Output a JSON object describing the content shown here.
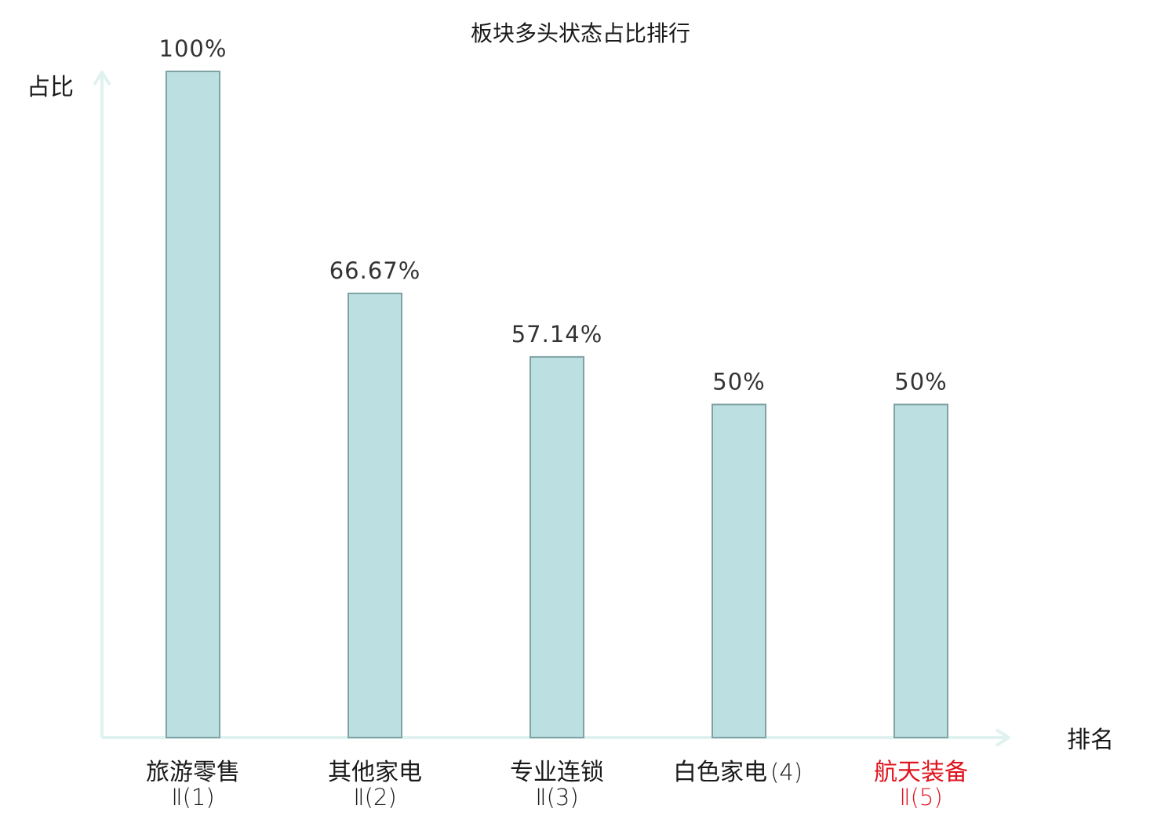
{
  "chart_data": {
    "type": "bar",
    "title": "板块多头状态占比排行",
    "ylabel": "占比",
    "xlabel": "排名",
    "ylim": [
      0,
      100
    ],
    "categories": [
      {
        "name": "旅游零售",
        "sub": "Ⅱ(1)",
        "highlight": false
      },
      {
        "name": "其他家电",
        "sub": "Ⅱ(2)",
        "highlight": false
      },
      {
        "name": "专业连锁",
        "sub": "Ⅱ(3)",
        "highlight": false
      },
      {
        "name": "白色家电",
        "sub": "(4)",
        "highlight": false
      },
      {
        "name": "航天装备",
        "sub": "Ⅱ(5)",
        "highlight": true
      }
    ],
    "values": [
      100,
      66.67,
      57.14,
      50,
      50
    ],
    "value_labels": [
      "100%",
      "66.67%",
      "57.14%",
      "50%",
      "50%"
    ],
    "grid": false,
    "colors": {
      "bar_fill": "#bce0e1",
      "bar_stroke": "#7fa3a4",
      "axis": "#e0f2ef",
      "text": "#1a1a1a",
      "value_text": "#333333",
      "highlight": "#e0141e"
    }
  }
}
